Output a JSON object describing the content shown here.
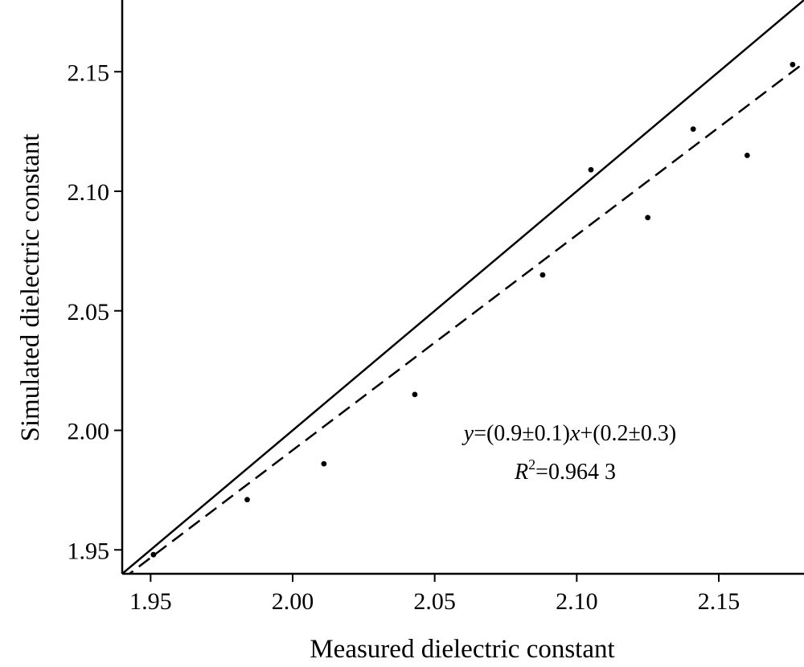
{
  "chart_data": {
    "type": "scatter",
    "xlabel": "Measured dielectric constant",
    "ylabel": "Simulated dielectric constant",
    "xlim": [
      1.94,
      2.18
    ],
    "ylim": [
      1.94,
      2.18
    ],
    "x_ticks": [
      "1.95",
      "2.00",
      "2.05",
      "2.10",
      "2.15"
    ],
    "y_ticks": [
      "1.95",
      "2.00",
      "2.05",
      "2.10",
      "2.15"
    ],
    "points": [
      [
        1.951,
        1.948
      ],
      [
        1.984,
        1.971
      ],
      [
        2.011,
        1.986
      ],
      [
        2.043,
        2.015
      ],
      [
        2.088,
        2.065
      ],
      [
        2.105,
        2.109
      ],
      [
        2.125,
        2.089
      ],
      [
        2.141,
        2.126
      ],
      [
        2.16,
        2.115
      ],
      [
        2.176,
        2.153
      ]
    ],
    "lines": [
      {
        "style": "solid",
        "slope": 1.0,
        "intercept": 0.0
      },
      {
        "style": "dashed",
        "slope": 0.9,
        "intercept": 0.1917
      }
    ],
    "annotation": {
      "equation": {
        "y": "y",
        "mid": "=(0.9±0.1)",
        "x": "x",
        "tail": "+(0.2±0.3)"
      },
      "r2": {
        "r": "R",
        "sup": "2",
        "value": "=0.964 3"
      }
    },
    "grid": false,
    "legend": "none"
  }
}
